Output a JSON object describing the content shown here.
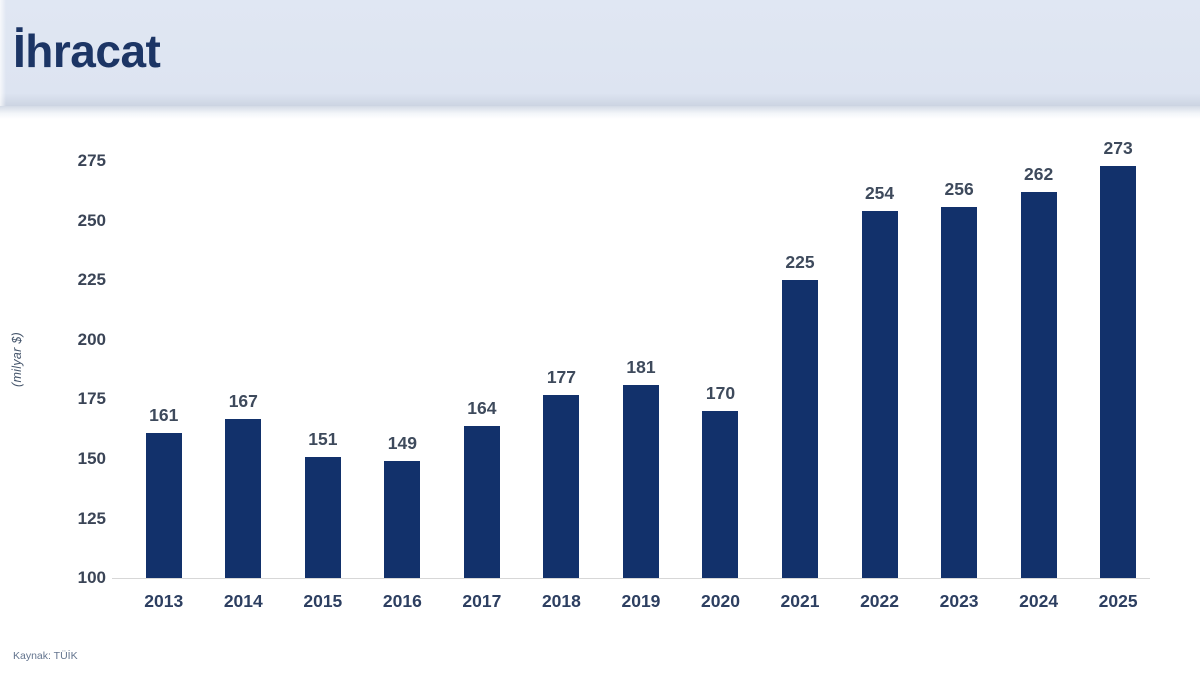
{
  "header": {
    "title": "İhracat"
  },
  "source_note": "Kaynak: TÜİK",
  "colors": {
    "header_bg": "#dde4f1",
    "title_text": "#1c3565",
    "bar_fill": "#12316b",
    "value_label": "#3e4a5c",
    "axis_label": "#2d3f61",
    "axis_line": "#d7d7d7",
    "source_text": "#63748e"
  },
  "chart_data": {
    "type": "bar",
    "title": "İhracat",
    "xlabel": "",
    "ylabel": "(milyar $)",
    "categories": [
      "2013",
      "2014",
      "2015",
      "2016",
      "2017",
      "2018",
      "2019",
      "2020",
      "2021",
      "2022",
      "2023",
      "2024",
      "2025"
    ],
    "values": [
      161,
      167,
      151,
      149,
      164,
      177,
      181,
      170,
      225,
      254,
      256,
      262,
      273
    ],
    "ylim": [
      100,
      275
    ],
    "ytick_step": 25,
    "yticks": [
      100,
      125,
      150,
      175,
      200,
      225,
      250,
      275
    ],
    "grid": false,
    "legend": "none",
    "value_labels": "above bars"
  }
}
